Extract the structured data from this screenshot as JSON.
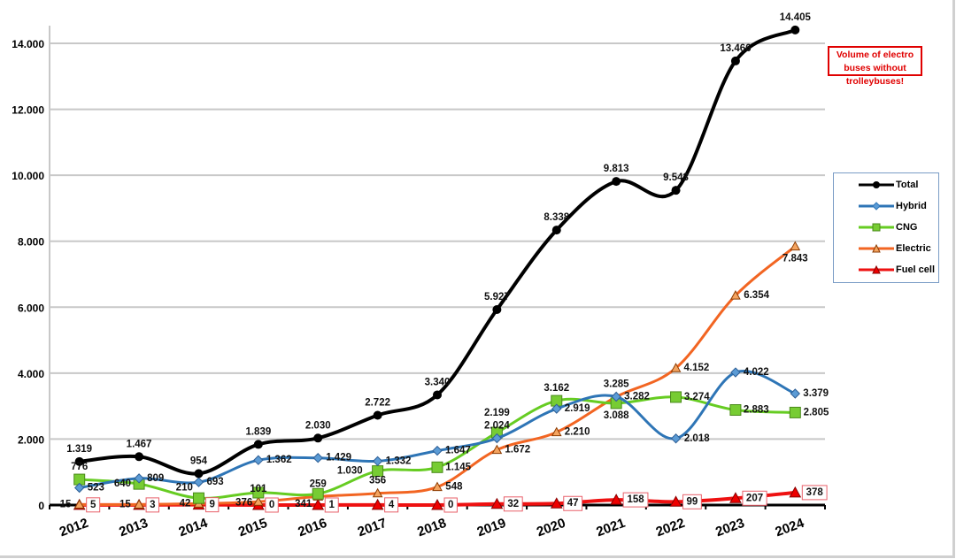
{
  "chart_data": {
    "type": "line",
    "title": "",
    "xlabel": "",
    "ylabel": "",
    "categories": [
      "2012",
      "2013",
      "2014",
      "2015",
      "2016",
      "2017",
      "2018",
      "2019",
      "2020",
      "2021",
      "2022",
      "2023",
      "2024"
    ],
    "ylim": [
      0,
      14000
    ],
    "yticks": [
      0,
      2000,
      4000,
      6000,
      8000,
      10000,
      12000,
      14000
    ],
    "ytick_labels": [
      "0",
      "2.000",
      "4.000",
      "6.000",
      "8.000",
      "10.000",
      "12.000",
      "14.000"
    ],
    "grid": "horizontal",
    "legend_position": "right",
    "smoothed": true,
    "series": [
      {
        "name": "Total",
        "color": "#000000",
        "marker": "circle",
        "values": [
          1319,
          1467,
          954,
          1839,
          2030,
          2722,
          3340,
          5927,
          8338,
          9813,
          9543,
          13466,
          14405
        ],
        "labels": [
          "1.319",
          "1.467",
          "954",
          "1.839",
          "2.030",
          "2.722",
          "3.340",
          "5.927",
          "8.338",
          "9.813",
          "9.543",
          "13.466",
          "14.405"
        ]
      },
      {
        "name": "Hybrid",
        "color": "#2e75b6",
        "marker": "diamond",
        "values": [
          523,
          809,
          693,
          1362,
          1429,
          1332,
          1647,
          2024,
          2919,
          3285,
          2018,
          4022,
          3379
        ],
        "labels": [
          "523",
          "809",
          "693",
          "1.362",
          "1.429",
          "1.332",
          "1.647",
          "2.024",
          "2.919",
          "3.285",
          "2.018",
          "4.022",
          "3.379"
        ]
      },
      {
        "name": "CNG",
        "color": "#66cc22",
        "marker": "square",
        "values": [
          776,
          640,
          210,
          376,
          341,
          1030,
          1145,
          2199,
          3162,
          3088,
          3274,
          2883,
          2805
        ],
        "labels": [
          "776",
          "640",
          "210",
          "376",
          "341",
          "1.030",
          "1.145",
          "2.199",
          "3.162",
          "3.088",
          "3.274",
          "2.883",
          "2.805"
        ]
      },
      {
        "name": "Electric",
        "color": "#f26522",
        "marker": "triangle",
        "values": [
          15,
          15,
          42,
          101,
          259,
          356,
          548,
          1672,
          2210,
          3282,
          4152,
          6354,
          7843
        ],
        "labels": [
          "15",
          "15",
          "42",
          "101",
          "259",
          "356",
          "548",
          "1.672",
          "2.210",
          "3.282",
          "4.152",
          "6.354",
          "7.843"
        ]
      },
      {
        "name": "Fuel cell",
        "color": "#ee1111",
        "marker": "triangle-filled",
        "values": [
          5,
          3,
          9,
          0,
          1,
          4,
          0,
          32,
          47,
          158,
          99,
          207,
          378
        ],
        "labels": [
          "5",
          "3",
          "9",
          "0",
          "1",
          "4",
          "0",
          "32",
          "47",
          "158",
          "99",
          "207",
          "378"
        ]
      }
    ],
    "annotations": [
      "Volume of electro buses without trolleybuses!"
    ]
  }
}
